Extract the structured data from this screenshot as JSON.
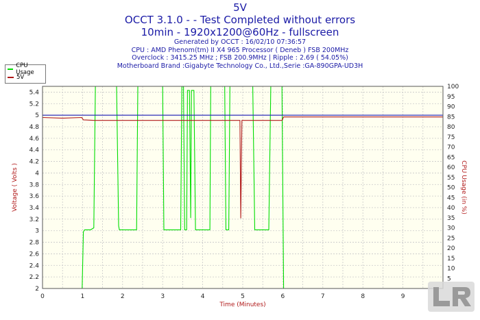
{
  "titles": {
    "line1": "5V",
    "line2": "OCCT 3.1.0 -  - Test Completed without errors",
    "line3": "10min - 1920x1200@60Hz - fullscreen",
    "info1": "Generated by OCCT : 16/02/10 07:36:57",
    "info2": "CPU : AMD Phenom(tm) II X4 965 Processor ( Deneb ) FSB 200MHz",
    "info3": "Overclock : 3415.25 MHz ; FSB 200.9MHz | Ripple : 2.69 ( 54.05%)",
    "info4": "Motherboard Brand :Gigabyte Technology Co., Ltd.,Serie :GA-890GPA-UD3H"
  },
  "colors": {
    "cpu_usage": "#00dd00",
    "voltage": "#b01818",
    "title": "#1a1aa6",
    "plot_bg": "#fffff0",
    "ref_line": "#2b2bb8"
  },
  "chart_data": {
    "type": "line",
    "title": "5V",
    "xlabel": "Time (Minutes)",
    "ylabel_left": "Voltage ( Volts )",
    "ylabel_right": "CPU Usage (in %)",
    "xlim": [
      0,
      10
    ],
    "ylim_left": [
      2,
      5.5
    ],
    "ylim_right": [
      0,
      100
    ],
    "x_ticks": [
      0,
      1,
      2,
      3,
      4,
      5,
      6,
      7,
      8,
      9
    ],
    "y_left_ticks": [
      2,
      2.2,
      2.4,
      2.6,
      2.8,
      3,
      3.2,
      3.4,
      3.6,
      3.8,
      4,
      4.2,
      4.4,
      4.6,
      4.8,
      5,
      5.2,
      5.4
    ],
    "y_right_ticks": [
      5,
      10,
      15,
      20,
      25,
      30,
      35,
      40,
      45,
      50,
      55,
      60,
      65,
      70,
      75,
      80,
      85,
      90,
      95,
      100
    ],
    "grid": true,
    "legend": "top-left",
    "series": [
      {
        "name": "CPU Usage",
        "axis": "right",
        "points": [
          [
            0.0,
            0
          ],
          [
            0.99,
            0
          ],
          [
            1.02,
            28
          ],
          [
            1.05,
            29
          ],
          [
            1.2,
            29
          ],
          [
            1.28,
            30
          ],
          [
            1.32,
            100
          ],
          [
            1.35,
            100
          ],
          [
            1.85,
            100
          ],
          [
            1.9,
            31
          ],
          [
            1.92,
            29
          ],
          [
            2.35,
            29
          ],
          [
            2.38,
            100
          ],
          [
            3.0,
            100
          ],
          [
            3.03,
            29
          ],
          [
            3.45,
            29
          ],
          [
            3.48,
            100
          ],
          [
            3.52,
            100
          ],
          [
            3.55,
            29
          ],
          [
            3.6,
            29
          ],
          [
            3.62,
            98
          ],
          [
            3.67,
            98
          ],
          [
            3.7,
            35
          ],
          [
            3.72,
            98
          ],
          [
            3.78,
            98
          ],
          [
            3.82,
            29
          ],
          [
            4.18,
            29
          ],
          [
            4.2,
            100
          ],
          [
            4.55,
            100
          ],
          [
            4.58,
            29
          ],
          [
            4.65,
            29
          ],
          [
            4.68,
            100
          ],
          [
            5.25,
            100
          ],
          [
            5.3,
            29
          ],
          [
            5.65,
            29
          ],
          [
            5.7,
            100
          ],
          [
            5.98,
            100
          ],
          [
            6.02,
            0
          ],
          [
            10.0,
            0
          ]
        ]
      },
      {
        "name": "5V",
        "axis": "left",
        "points": [
          [
            0.0,
            4.96
          ],
          [
            0.5,
            4.95
          ],
          [
            0.98,
            4.96
          ],
          [
            1.02,
            4.92
          ],
          [
            1.3,
            4.91
          ],
          [
            2.5,
            4.91
          ],
          [
            3.5,
            4.91
          ],
          [
            4.5,
            4.91
          ],
          [
            4.93,
            4.91
          ],
          [
            4.95,
            3.22
          ],
          [
            4.98,
            4.91
          ],
          [
            5.5,
            4.91
          ],
          [
            5.98,
            4.91
          ],
          [
            6.02,
            4.97
          ],
          [
            8.0,
            4.97
          ],
          [
            10.0,
            4.97
          ]
        ]
      },
      {
        "name": "",
        "axis": "left",
        "role": "reference",
        "points": [
          [
            0.0,
            5.0
          ],
          [
            10.0,
            5.0
          ]
        ]
      }
    ]
  },
  "legend": {
    "cpu": "CPU Usage",
    "volt": "5V"
  },
  "watermark": {
    "icon": "legit-reviews-logo-icon"
  }
}
